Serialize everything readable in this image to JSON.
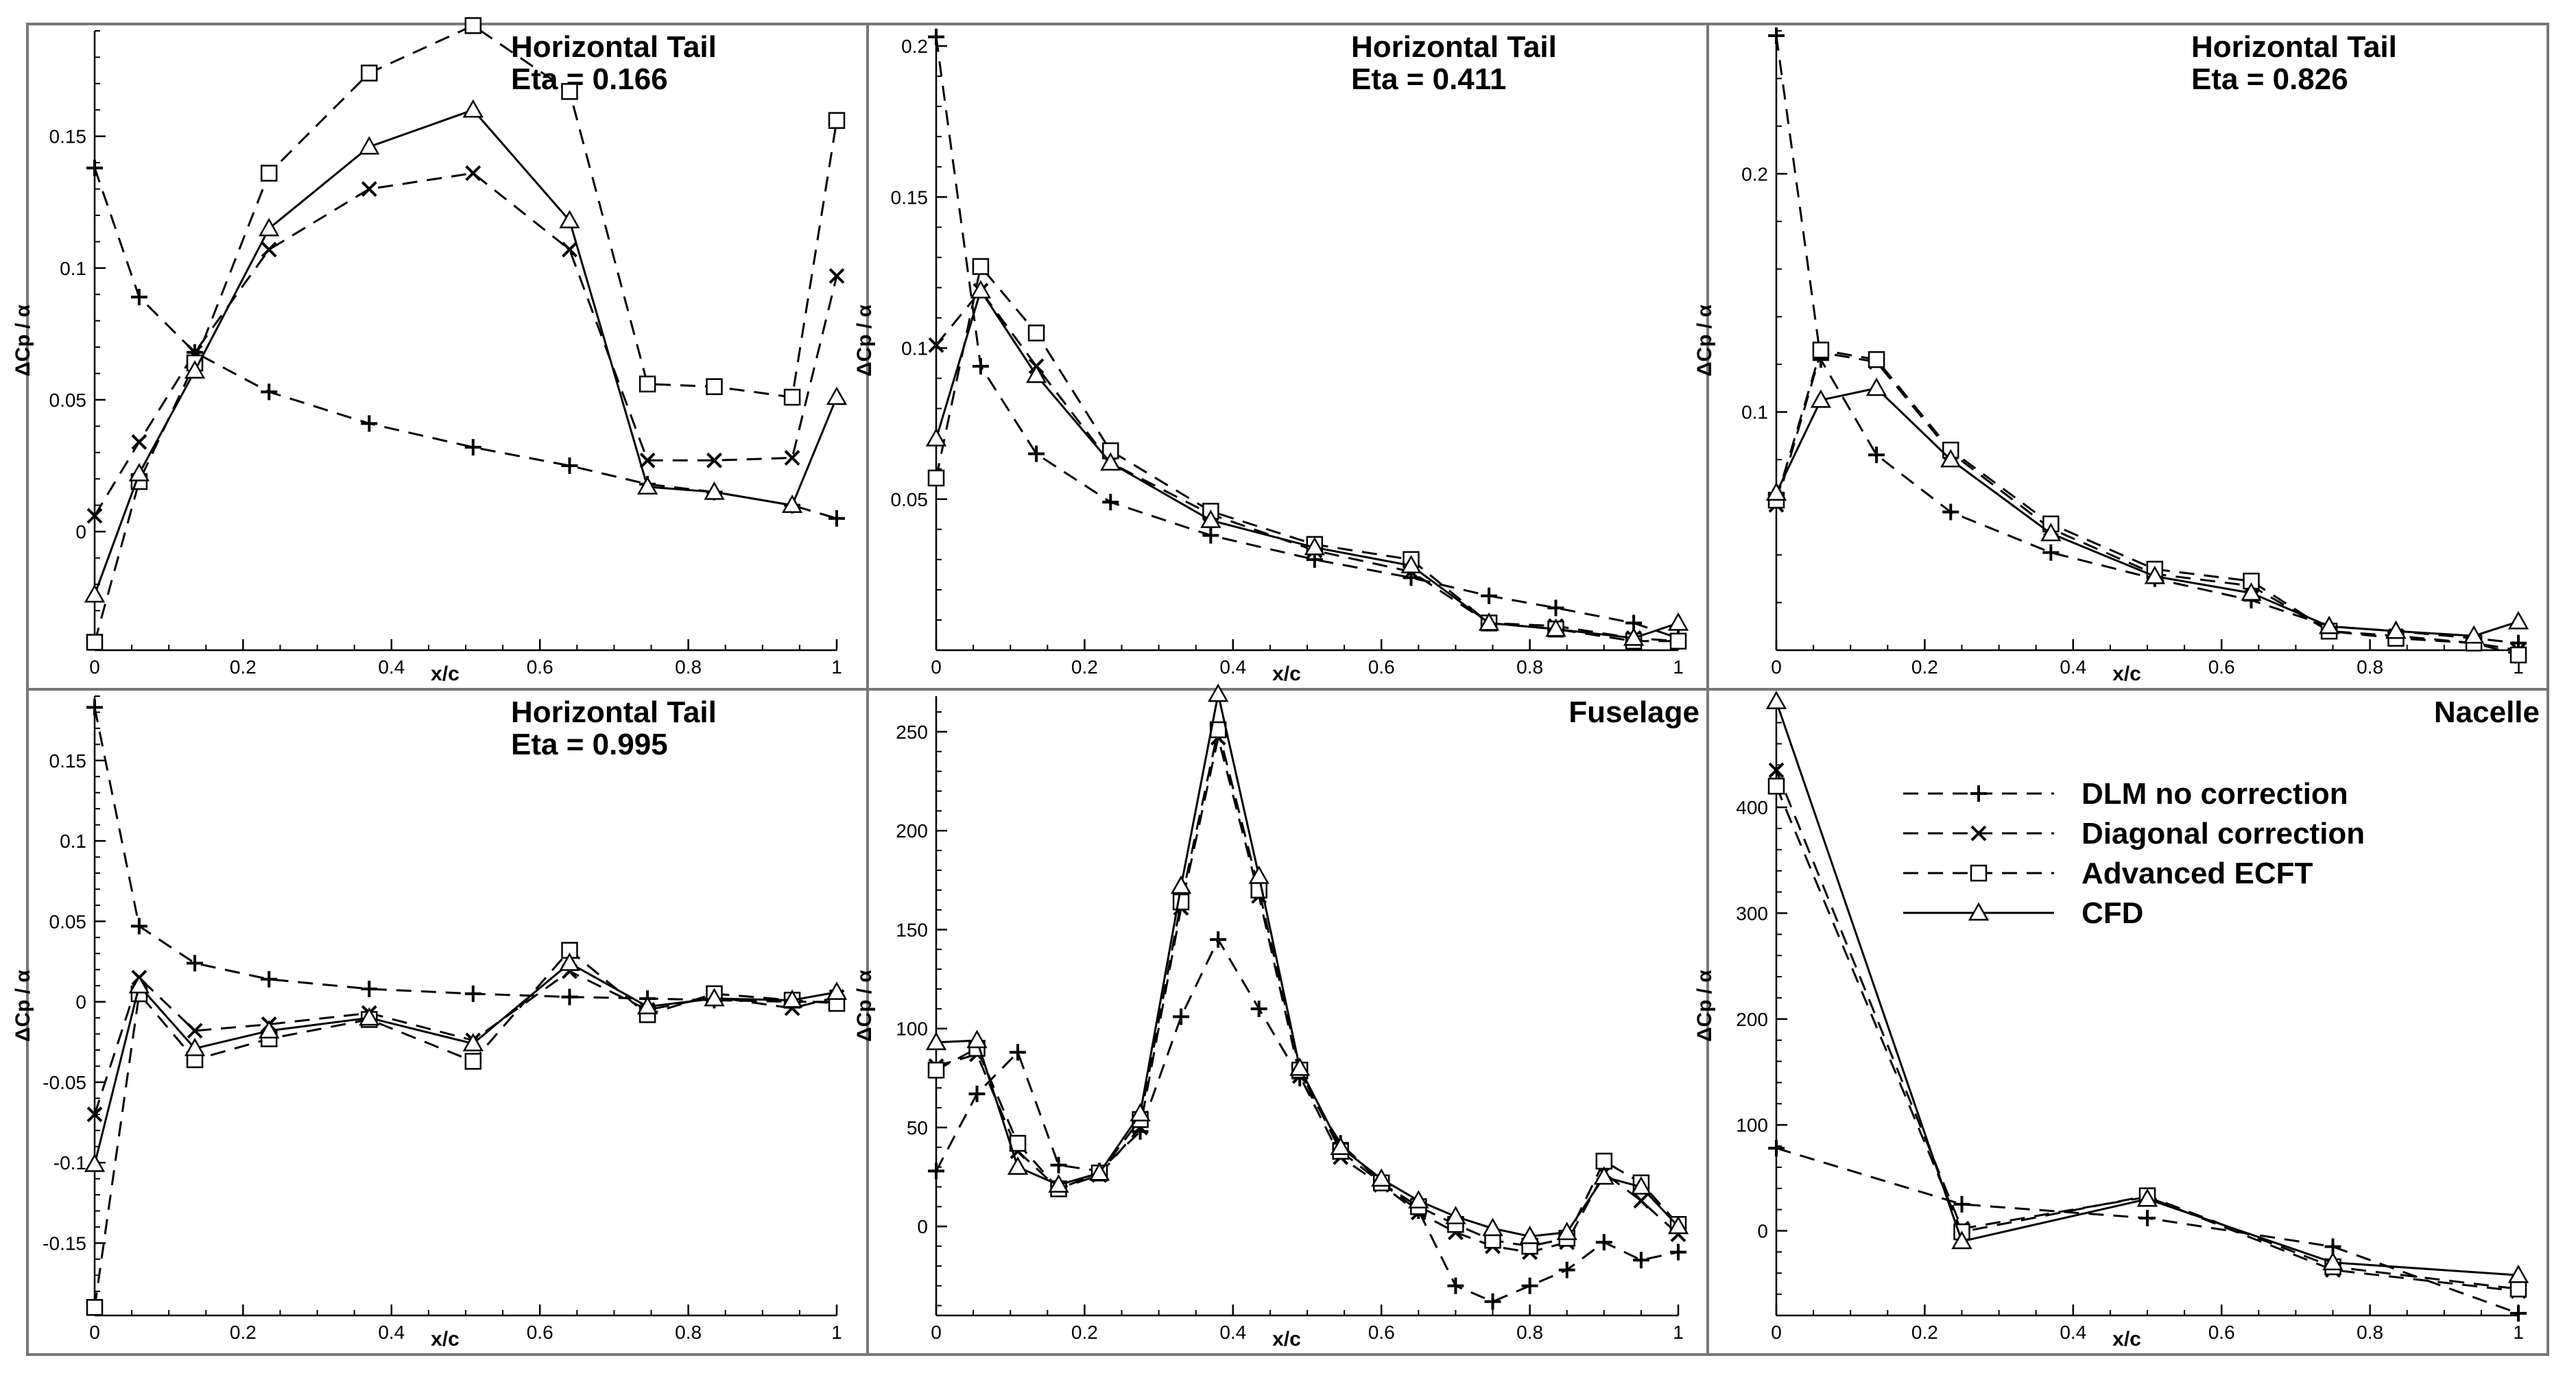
{
  "chart_data": [
    {
      "type": "line",
      "title": "Horizontal Tail",
      "subtitle": "Eta = 0.166",
      "xlabel": "x/c",
      "ylabel": "ΔCp / α",
      "xlim": [
        0,
        1
      ],
      "ylim": [
        -0.045,
        0.19
      ],
      "xticks": [
        0,
        0.2,
        0.4,
        0.6,
        0.8,
        1
      ],
      "xtick_labels": [
        "0",
        "0.2",
        "0.4",
        "0.6",
        "0.8",
        "1"
      ],
      "yticks": [
        0,
        0.05,
        0.1,
        0.15
      ],
      "ytick_labels": [
        "0",
        "0.05",
        "0.1",
        "0.15"
      ],
      "series": [
        {
          "name": "DLM no correction",
          "marker": "plus",
          "dash": "dashed",
          "x": [
            0,
            0.06,
            0.135,
            0.235,
            0.37,
            0.51,
            0.64,
            0.745,
            0.835,
            0.94,
            1
          ],
          "y": [
            0.138,
            0.089,
            0.068,
            0.053,
            0.041,
            0.032,
            0.025,
            0.018,
            0.015,
            0.01,
            0.005
          ]
        },
        {
          "name": "Diagonal correction",
          "marker": "cross",
          "dash": "dashed",
          "x": [
            0,
            0.06,
            0.135,
            0.235,
            0.37,
            0.51,
            0.64,
            0.745,
            0.835,
            0.94,
            1
          ],
          "y": [
            0.006,
            0.034,
            0.068,
            0.107,
            0.13,
            0.136,
            0.107,
            0.027,
            0.027,
            0.028,
            0.097
          ]
        },
        {
          "name": "Advanced ECFT",
          "marker": "square",
          "dash": "dashed",
          "x": [
            0,
            0.06,
            0.135,
            0.235,
            0.37,
            0.51,
            0.64,
            0.745,
            0.835,
            0.94,
            1
          ],
          "y": [
            -0.042,
            0.019,
            0.064,
            0.136,
            0.174,
            0.192,
            0.167,
            0.056,
            0.055,
            0.051,
            0.156
          ]
        },
        {
          "name": "CFD",
          "marker": "triangle",
          "dash": "solid",
          "x": [
            0,
            0.06,
            0.135,
            0.235,
            0.37,
            0.51,
            0.64,
            0.745,
            0.835,
            0.94,
            1
          ],
          "y": [
            -0.024,
            0.022,
            0.061,
            0.115,
            0.146,
            0.16,
            0.118,
            0.017,
            0.015,
            0.01,
            0.051
          ]
        }
      ]
    },
    {
      "type": "line",
      "title": "Horizontal Tail",
      "subtitle": "Eta = 0.411",
      "xlabel": "x/c",
      "ylabel": "ΔCp / α",
      "xlim": [
        0,
        1
      ],
      "ylim": [
        0,
        0.205
      ],
      "xticks": [
        0,
        0.2,
        0.4,
        0.6,
        0.8,
        1
      ],
      "xtick_labels": [
        "0",
        "0.2",
        "0.4",
        "0.6",
        "0.8",
        "1"
      ],
      "yticks": [
        0.05,
        0.1,
        0.15,
        0.2
      ],
      "ytick_labels": [
        "0.05",
        "0.1",
        "0.15",
        "0.2"
      ],
      "series": [
        {
          "name": "DLM no correction",
          "marker": "plus",
          "dash": "dashed",
          "x": [
            0,
            0.06,
            0.135,
            0.235,
            0.37,
            0.51,
            0.64,
            0.745,
            0.835,
            0.94,
            1
          ],
          "y": [
            0.203,
            0.094,
            0.065,
            0.049,
            0.038,
            0.03,
            0.024,
            0.018,
            0.014,
            0.009,
            0.004
          ]
        },
        {
          "name": "Diagonal correction",
          "marker": "cross",
          "dash": "dashed",
          "x": [
            0,
            0.06,
            0.135,
            0.235,
            0.37,
            0.51,
            0.64,
            0.745,
            0.835,
            0.94,
            1
          ],
          "y": [
            0.101,
            0.119,
            0.094,
            0.062,
            0.045,
            0.033,
            0.026,
            0.009,
            0.008,
            0.004,
            0.003
          ]
        },
        {
          "name": "Advanced ECFT",
          "marker": "square",
          "dash": "dashed",
          "x": [
            0,
            0.06,
            0.135,
            0.235,
            0.37,
            0.51,
            0.64,
            0.745,
            0.835,
            0.94,
            1
          ],
          "y": [
            0.057,
            0.127,
            0.105,
            0.066,
            0.046,
            0.035,
            0.03,
            0.009,
            0.007,
            0.003,
            0.003
          ]
        },
        {
          "name": "CFD",
          "marker": "triangle",
          "dash": "solid",
          "x": [
            0,
            0.06,
            0.135,
            0.235,
            0.37,
            0.51,
            0.64,
            0.745,
            0.835,
            0.94,
            1
          ],
          "y": [
            0.07,
            0.119,
            0.091,
            0.062,
            0.043,
            0.034,
            0.028,
            0.009,
            0.007,
            0.004,
            0.009
          ]
        }
      ]
    },
    {
      "type": "line",
      "title": "Horizontal Tail",
      "subtitle": "Eta = 0.826",
      "xlabel": "x/c",
      "ylabel": "ΔCp / α",
      "xlim": [
        0,
        1
      ],
      "ylim": [
        0,
        0.26
      ],
      "xticks": [
        0,
        0.2,
        0.4,
        0.6,
        0.8,
        1
      ],
      "xtick_labels": [
        "0",
        "0.2",
        "0.4",
        "0.6",
        "0.8",
        "1"
      ],
      "yticks": [
        0.1,
        0.2
      ],
      "ytick_labels": [
        "0.1",
        "0.2"
      ],
      "series": [
        {
          "name": "DLM no correction",
          "marker": "plus",
          "dash": "dashed",
          "x": [
            0,
            0.06,
            0.135,
            0.235,
            0.37,
            0.51,
            0.64,
            0.745,
            0.835,
            0.94,
            1
          ],
          "y": [
            0.258,
            0.122,
            0.082,
            0.058,
            0.041,
            0.03,
            0.021,
            0.01,
            0.008,
            0.005,
            0.003
          ]
        },
        {
          "name": "Diagonal correction",
          "marker": "cross",
          "dash": "dashed",
          "x": [
            0,
            0.06,
            0.135,
            0.235,
            0.37,
            0.51,
            0.64,
            0.745,
            0.835,
            0.94,
            1
          ],
          "y": [
            0.061,
            0.125,
            0.121,
            0.083,
            0.051,
            0.032,
            0.027,
            0.008,
            0.006,
            0.003,
            0.0
          ]
        },
        {
          "name": "Advanced ECFT",
          "marker": "square",
          "dash": "dashed",
          "x": [
            0,
            0.06,
            0.135,
            0.235,
            0.37,
            0.51,
            0.64,
            0.745,
            0.835,
            0.94,
            1
          ],
          "y": [
            0.063,
            0.126,
            0.122,
            0.084,
            0.053,
            0.034,
            0.029,
            0.008,
            0.005,
            0.003,
            -0.002
          ]
        },
        {
          "name": "CFD",
          "marker": "triangle",
          "dash": "solid",
          "x": [
            0,
            0.06,
            0.135,
            0.235,
            0.37,
            0.51,
            0.64,
            0.745,
            0.835,
            0.94,
            1
          ],
          "y": [
            0.066,
            0.105,
            0.11,
            0.08,
            0.049,
            0.031,
            0.024,
            0.01,
            0.008,
            0.006,
            0.012
          ]
        }
      ]
    },
    {
      "type": "line",
      "title": "Horizontal Tail",
      "subtitle": "Eta = 0.995",
      "xlabel": "x/c",
      "ylabel": "ΔCp / α",
      "xlim": [
        0,
        1
      ],
      "ylim": [
        -0.195,
        0.19
      ],
      "xticks": [
        0,
        0.2,
        0.4,
        0.6,
        0.8,
        1
      ],
      "xtick_labels": [
        "0",
        "0.2",
        "0.4",
        "0.6",
        "0.8",
        "1"
      ],
      "yticks": [
        -0.15,
        -0.1,
        -0.05,
        0,
        0.05,
        0.1,
        0.15
      ],
      "ytick_labels": [
        "-0.15",
        "-0.1",
        "-0.05",
        "0",
        "0.05",
        "0.1",
        "0.15"
      ],
      "series": [
        {
          "name": "DLM no correction",
          "marker": "plus",
          "dash": "dashed",
          "x": [
            0,
            0.06,
            0.135,
            0.235,
            0.37,
            0.51,
            0.64,
            0.745,
            0.835,
            0.94,
            1
          ],
          "y": [
            0.183,
            0.047,
            0.024,
            0.014,
            0.008,
            0.005,
            0.003,
            0.002,
            0.001,
            0.0,
            0.0
          ]
        },
        {
          "name": "Diagonal correction",
          "marker": "cross",
          "dash": "dashed",
          "x": [
            0,
            0.06,
            0.135,
            0.235,
            0.37,
            0.51,
            0.64,
            0.745,
            0.835,
            0.94,
            1
          ],
          "y": [
            -0.07,
            0.015,
            -0.018,
            -0.014,
            -0.007,
            -0.024,
            0.019,
            -0.005,
            0.003,
            -0.004,
            0.003
          ]
        },
        {
          "name": "Advanced ECFT",
          "marker": "square",
          "dash": "dashed",
          "x": [
            0,
            0.06,
            0.135,
            0.235,
            0.37,
            0.51,
            0.64,
            0.745,
            0.835,
            0.94,
            1
          ],
          "y": [
            -0.19,
            0.005,
            -0.036,
            -0.023,
            -0.011,
            -0.037,
            0.032,
            -0.008,
            0.005,
            0.001,
            -0.001
          ]
        },
        {
          "name": "CFD",
          "marker": "triangle",
          "dash": "solid",
          "x": [
            0,
            0.06,
            0.135,
            0.235,
            0.37,
            0.51,
            0.64,
            0.745,
            0.835,
            0.94,
            1
          ],
          "y": [
            -0.101,
            0.01,
            -0.029,
            -0.018,
            -0.01,
            -0.026,
            0.024,
            -0.003,
            0.002,
            0.001,
            0.006
          ]
        }
      ]
    },
    {
      "type": "line",
      "title": "Fuselage",
      "xlabel": "x/c",
      "ylabel": "ΔCp / α",
      "xlim": [
        0,
        1
      ],
      "ylim": [
        -45,
        268
      ],
      "xticks": [
        0,
        0.2,
        0.4,
        0.6,
        0.8,
        1
      ],
      "xtick_labels": [
        "0",
        "0.2",
        "0.4",
        "0.6",
        "0.8",
        "1"
      ],
      "yticks": [
        0,
        50,
        100,
        150,
        200,
        250
      ],
      "ytick_labels": [
        "0",
        "50",
        "100",
        "150",
        "200",
        "250"
      ],
      "series": [
        {
          "name": "DLM no correction",
          "marker": "plus",
          "dash": "dashed",
          "x": [
            0,
            0.055,
            0.11,
            0.165,
            0.22,
            0.275,
            0.33,
            0.38,
            0.435,
            0.49,
            0.545,
            0.6,
            0.65,
            0.7,
            0.75,
            0.8,
            0.85,
            0.9,
            0.95,
            1
          ],
          "y": [
            28,
            67,
            88,
            31,
            28,
            48,
            106,
            145,
            110,
            75,
            42,
            22,
            8,
            -30,
            -38,
            -30,
            -22,
            -8,
            -17,
            -13
          ]
        },
        {
          "name": "Diagonal correction",
          "marker": "cross",
          "dash": "dashed",
          "x": [
            0,
            0.055,
            0.11,
            0.165,
            0.22,
            0.275,
            0.33,
            0.38,
            0.435,
            0.49,
            0.545,
            0.6,
            0.65,
            0.7,
            0.75,
            0.8,
            0.85,
            0.9,
            0.95,
            1
          ],
          "y": [
            81,
            87,
            38,
            19,
            26,
            50,
            161,
            247,
            167,
            76,
            35,
            21,
            7,
            -3,
            -10,
            -13,
            -8,
            27,
            13,
            -4
          ]
        },
        {
          "name": "Advanced ECFT",
          "marker": "square",
          "dash": "dashed",
          "x": [
            0,
            0.055,
            0.11,
            0.165,
            0.22,
            0.275,
            0.33,
            0.38,
            0.435,
            0.49,
            0.545,
            0.6,
            0.65,
            0.7,
            0.75,
            0.8,
            0.85,
            0.9,
            0.95,
            1
          ],
          "y": [
            79,
            90,
            42,
            19,
            27,
            54,
            164,
            251,
            170,
            79,
            38,
            22,
            10,
            1,
            -7,
            -10,
            -6,
            33,
            22,
            1
          ]
        },
        {
          "name": "CFD",
          "marker": "triangle",
          "dash": "solid",
          "x": [
            0,
            0.055,
            0.11,
            0.165,
            0.22,
            0.275,
            0.33,
            0.38,
            0.435,
            0.49,
            0.545,
            0.6,
            0.65,
            0.7,
            0.75,
            0.8,
            0.85,
            0.9,
            0.95,
            1
          ],
          "y": [
            93,
            94,
            30,
            21,
            27,
            57,
            172,
            269,
            177,
            80,
            40,
            24,
            13,
            5,
            -1,
            -5,
            -3,
            25,
            20,
            0
          ]
        }
      ]
    },
    {
      "type": "line",
      "title": "Nacelle",
      "xlabel": "x/c",
      "ylabel": "ΔCp / α",
      "xlim": [
        0,
        1
      ],
      "ylim": [
        -80,
        505
      ],
      "xticks": [
        0,
        0.2,
        0.4,
        0.6,
        0.8,
        1
      ],
      "xtick_labels": [
        "0",
        "0.2",
        "0.4",
        "0.6",
        "0.8",
        "1"
      ],
      "yticks": [
        0,
        100,
        200,
        300,
        400
      ],
      "ytick_labels": [
        "0",
        "100",
        "200",
        "300",
        "400"
      ],
      "series": [
        {
          "name": "DLM no correction",
          "marker": "plus",
          "dash": "dashed",
          "x": [
            0,
            0.25,
            0.5,
            0.75,
            1
          ],
          "y": [
            78,
            25,
            12,
            -15,
            -78
          ]
        },
        {
          "name": "Diagonal correction",
          "marker": "cross",
          "dash": "dashed",
          "x": [
            0,
            0.25,
            0.5,
            0.75,
            1
          ],
          "y": [
            435,
            2,
            32,
            -37,
            -57
          ]
        },
        {
          "name": "Advanced ECFT",
          "marker": "square",
          "dash": "dashed",
          "x": [
            0,
            0.25,
            0.5,
            0.75,
            1
          ],
          "y": [
            420,
            -1,
            33,
            -34,
            -55
          ]
        },
        {
          "name": "CFD",
          "marker": "triangle",
          "dash": "solid",
          "x": [
            0,
            0.25,
            0.5,
            0.75,
            1
          ],
          "y": [
            500,
            -10,
            30,
            -30,
            -42
          ]
        }
      ]
    }
  ],
  "legend": {
    "placement": "upper-center of Nacelle panel",
    "entries": [
      {
        "label": "DLM no correction",
        "marker": "plus",
        "dash": "dashed"
      },
      {
        "label": "Diagonal correction",
        "marker": "cross",
        "dash": "dashed"
      },
      {
        "label": "Advanced ECFT",
        "marker": "square",
        "dash": "dashed"
      },
      {
        "label": "CFD",
        "marker": "triangle",
        "dash": "solid"
      }
    ]
  },
  "colors": {
    "line": "#000000",
    "frame": "#777777",
    "background": "#ffffff"
  }
}
